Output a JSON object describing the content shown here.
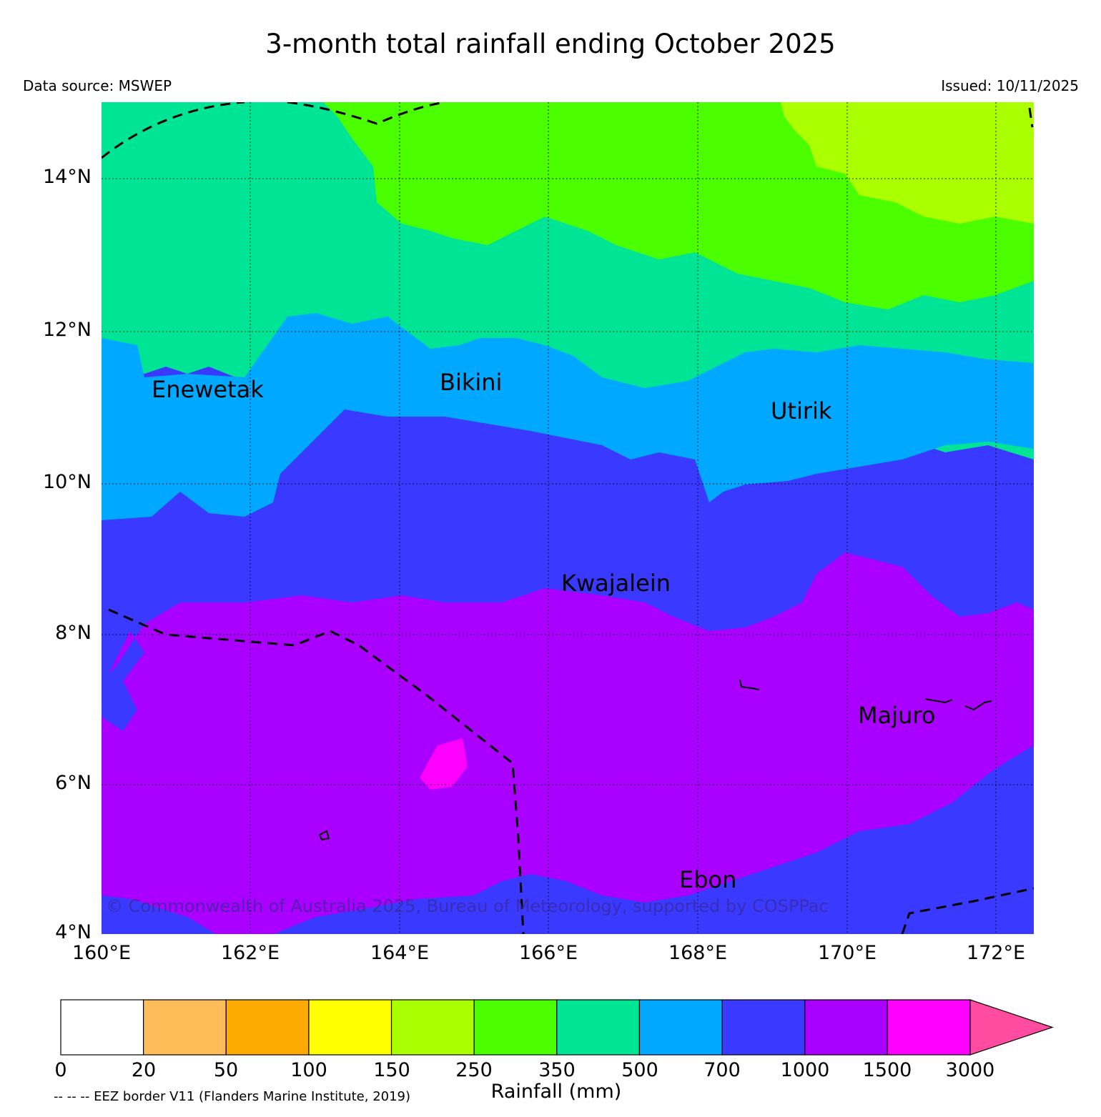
{
  "title": "3-month total rainfall ending October 2025",
  "data_source": "Data source: MSWEP",
  "issued": "Issued: 10/11/2025",
  "copyright": "© Commonwealth of Australia 2025, Bureau of Meteorology, supported by COSPPac",
  "map": {
    "lon_range": [
      160,
      172.5
    ],
    "lat_range": [
      4,
      15
    ],
    "lat_labels": [
      "14°N",
      "12°N",
      "10°N",
      "8°N",
      "6°N",
      "4°N"
    ],
    "lon_labels": [
      "160°E",
      "162°E",
      "164°E",
      "166°E",
      "168°E",
      "170°E",
      "172°E"
    ],
    "places": [
      {
        "name": "Enewetak"
      },
      {
        "name": "Bikini"
      },
      {
        "name": "Utirik"
      },
      {
        "name": "Kwajalein"
      },
      {
        "name": "Majuro"
      },
      {
        "name": "Ebon"
      }
    ]
  },
  "colorbar": {
    "title": "Rainfall (mm)",
    "labels": [
      "0",
      "20",
      "50",
      "100",
      "150",
      "250",
      "350",
      "500",
      "700",
      "1000",
      "1500",
      "3000"
    ],
    "colors": [
      "#ffffff",
      "#ffbd5a",
      "#ffaa00",
      "#ffff00",
      "#aaff00",
      "#4cff00",
      "#00e595",
      "#00a8ff",
      "#3939ff",
      "#aa00ff",
      "#ff00ff",
      "#ff4ca0"
    ]
  },
  "eez_note": "-- -- -- EEZ border V11 (Flanders Marine Institute, 2019)"
}
